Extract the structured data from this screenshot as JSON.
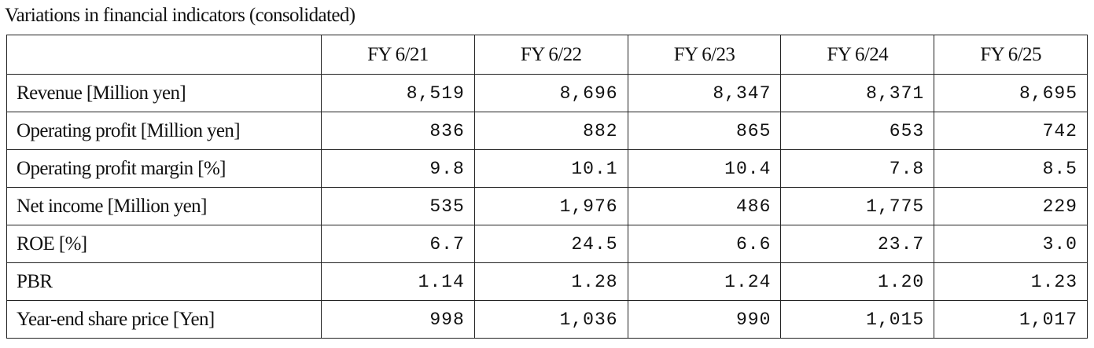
{
  "title": "Variations in financial indicators (consolidated)",
  "table": {
    "header": [
      "",
      "FY 6/21",
      "FY 6/22",
      "FY 6/23",
      "FY 6/24",
      "FY 6/25"
    ],
    "rows": [
      [
        "Revenue [Million yen]",
        "8,519",
        "8,696",
        "8,347",
        "8,371",
        "8,695"
      ],
      [
        "Operating profit [Million yen]",
        "836",
        "882",
        "865",
        "653",
        "742"
      ],
      [
        "Operating profit margin [%]",
        "9.8",
        "10.1",
        "10.4",
        "7.8",
        "8.5"
      ],
      [
        "Net income [Million yen]",
        "535",
        "1,976",
        "486",
        "1,775",
        "229"
      ],
      [
        "ROE [%]",
        "6.7",
        "24.5",
        "6.6",
        "23.7",
        "3.0"
      ],
      [
        "PBR",
        "1.14",
        "1.28",
        "1.24",
        "1.20",
        "1.23"
      ],
      [
        "Year-end share price [Yen]",
        "998",
        "1,036",
        "990",
        "1,015",
        "1,017"
      ]
    ]
  }
}
